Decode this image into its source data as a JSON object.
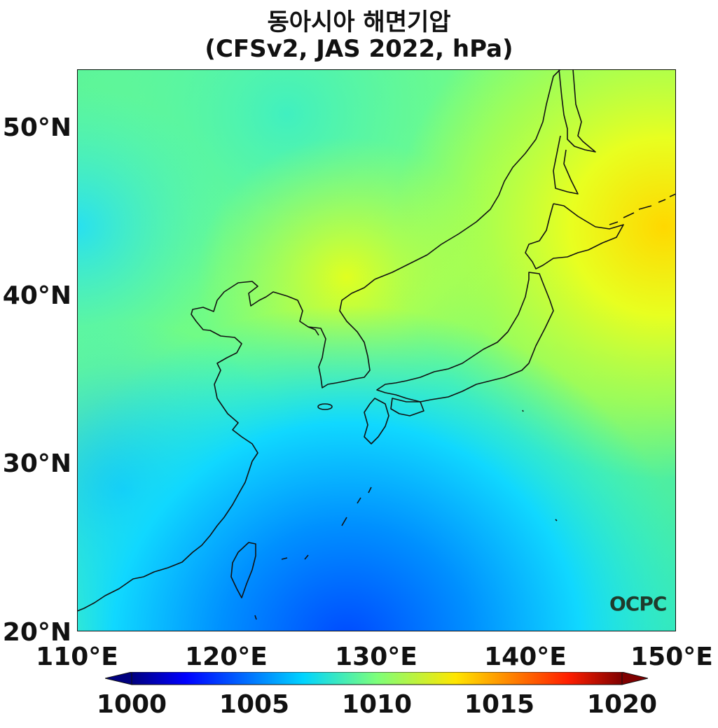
{
  "title": {
    "line1": "동아시아 해면기압",
    "line2": "(CFSv2, JAS 2022, hPa)"
  },
  "map": {
    "lat_labels": [
      "50°N",
      "40°N",
      "30°N",
      "20°N"
    ],
    "lon_labels": [
      "110°E",
      "120°E",
      "130°E",
      "140°E",
      "150°E"
    ],
    "extent": {
      "lon": [
        110,
        150
      ],
      "lat": [
        20,
        53.5
      ]
    },
    "field": "sea level pressure",
    "colormap": "jet"
  },
  "colorbar": {
    "ticks": [
      "1000",
      "1005",
      "1010",
      "1015",
      "1020"
    ],
    "range": [
      1000,
      1020
    ],
    "extend": "both"
  },
  "logo": "OCPC"
}
